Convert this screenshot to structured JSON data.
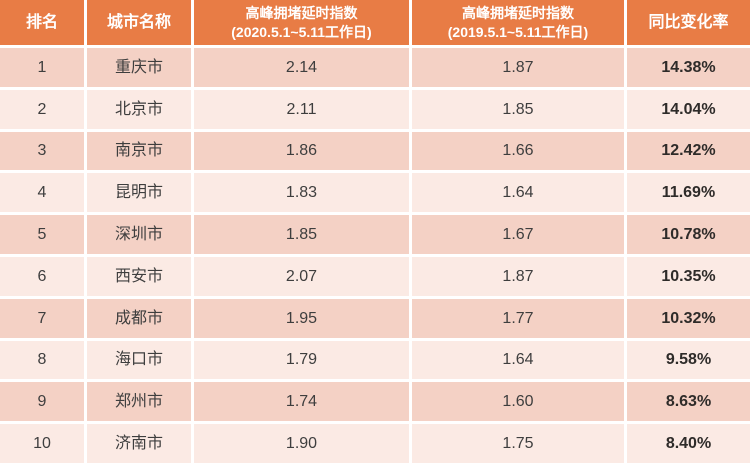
{
  "colors": {
    "header_bg": "#e87c45",
    "header_text": "#ffffff",
    "row_odd_bg": "#f4d1c5",
    "row_even_bg": "#fbeae4",
    "text": "#3e3e3e",
    "change_text": "#2e2b29"
  },
  "header": {
    "rank": "排名",
    "city": "城市名称",
    "idx2020_line1": "高峰拥堵延时指数",
    "idx2020_line2": "(2020.5.1~5.11工作日)",
    "idx2019_line1": "高峰拥堵延时指数",
    "idx2019_line2": "(2019.5.1~5.11工作日)",
    "change": "同比变化率"
  },
  "rows": [
    {
      "rank": "1",
      "city": "重庆市",
      "i2020": "2.14",
      "i2019": "1.87",
      "change": "14.38%"
    },
    {
      "rank": "2",
      "city": "北京市",
      "i2020": "2.11",
      "i2019": "1.85",
      "change": "14.04%"
    },
    {
      "rank": "3",
      "city": "南京市",
      "i2020": "1.86",
      "i2019": "1.66",
      "change": "12.42%"
    },
    {
      "rank": "4",
      "city": "昆明市",
      "i2020": "1.83",
      "i2019": "1.64",
      "change": "11.69%"
    },
    {
      "rank": "5",
      "city": "深圳市",
      "i2020": "1.85",
      "i2019": "1.67",
      "change": "10.78%"
    },
    {
      "rank": "6",
      "city": "西安市",
      "i2020": "2.07",
      "i2019": "1.87",
      "change": "10.35%"
    },
    {
      "rank": "7",
      "city": "成都市",
      "i2020": "1.95",
      "i2019": "1.77",
      "change": "10.32%"
    },
    {
      "rank": "8",
      "city": "海口市",
      "i2020": "1.79",
      "i2019": "1.64",
      "change": "9.58%"
    },
    {
      "rank": "9",
      "city": "郑州市",
      "i2020": "1.74",
      "i2019": "1.60",
      "change": "8.63%"
    },
    {
      "rank": "10",
      "city": "济南市",
      "i2020": "1.90",
      "i2019": "1.75",
      "change": "8.40%"
    }
  ],
  "chart_data": {
    "type": "table",
    "title": "",
    "columns": [
      "排名",
      "城市名称",
      "高峰拥堵延时指数 (2020.5.1~5.11工作日)",
      "高峰拥堵延时指数 (2019.5.1~5.11工作日)",
      "同比变化率"
    ],
    "rows": [
      [
        1,
        "重庆市",
        2.14,
        1.87,
        "14.38%"
      ],
      [
        2,
        "北京市",
        2.11,
        1.85,
        "14.04%"
      ],
      [
        3,
        "南京市",
        1.86,
        1.66,
        "12.42%"
      ],
      [
        4,
        "昆明市",
        1.83,
        1.64,
        "11.69%"
      ],
      [
        5,
        "深圳市",
        1.85,
        1.67,
        "10.78%"
      ],
      [
        6,
        "西安市",
        2.07,
        1.87,
        "10.35%"
      ],
      [
        7,
        "成都市",
        1.95,
        1.77,
        "10.32%"
      ],
      [
        8,
        "海口市",
        1.79,
        1.64,
        "9.58%"
      ],
      [
        9,
        "郑州市",
        1.74,
        1.6,
        "8.63%"
      ],
      [
        10,
        "济南市",
        1.9,
        1.75,
        "8.40%"
      ]
    ]
  }
}
